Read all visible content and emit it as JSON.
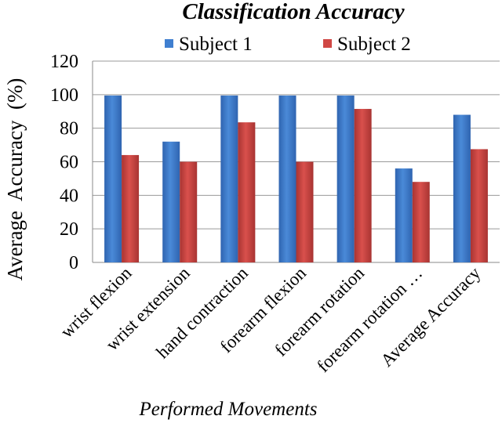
{
  "chart_data": {
    "type": "bar",
    "title": "Classification Accuracy",
    "xlabel": "Performed Movements",
    "ylabel": "Average  Accuracy  (%)",
    "ylim": [
      0,
      120
    ],
    "yticks": [
      "0",
      "20",
      "40",
      "60",
      "80",
      "100",
      "120"
    ],
    "grid": true,
    "legend_position": "top",
    "categories": [
      "wrist flexion",
      "wrist extension",
      "hand contraction",
      "forearm flexion",
      "forearm rotation",
      "forearm rotation …",
      "Average Accuracy"
    ],
    "series": [
      {
        "name": "Subject 1",
        "color": "#3f7fd0",
        "values": [
          99.5,
          72,
          99.5,
          99.5,
          99.5,
          56,
          88
        ]
      },
      {
        "name": "Subject 2",
        "color": "#d04744",
        "values": [
          64,
          60,
          83.5,
          60,
          91.5,
          48,
          67.5
        ]
      }
    ]
  }
}
